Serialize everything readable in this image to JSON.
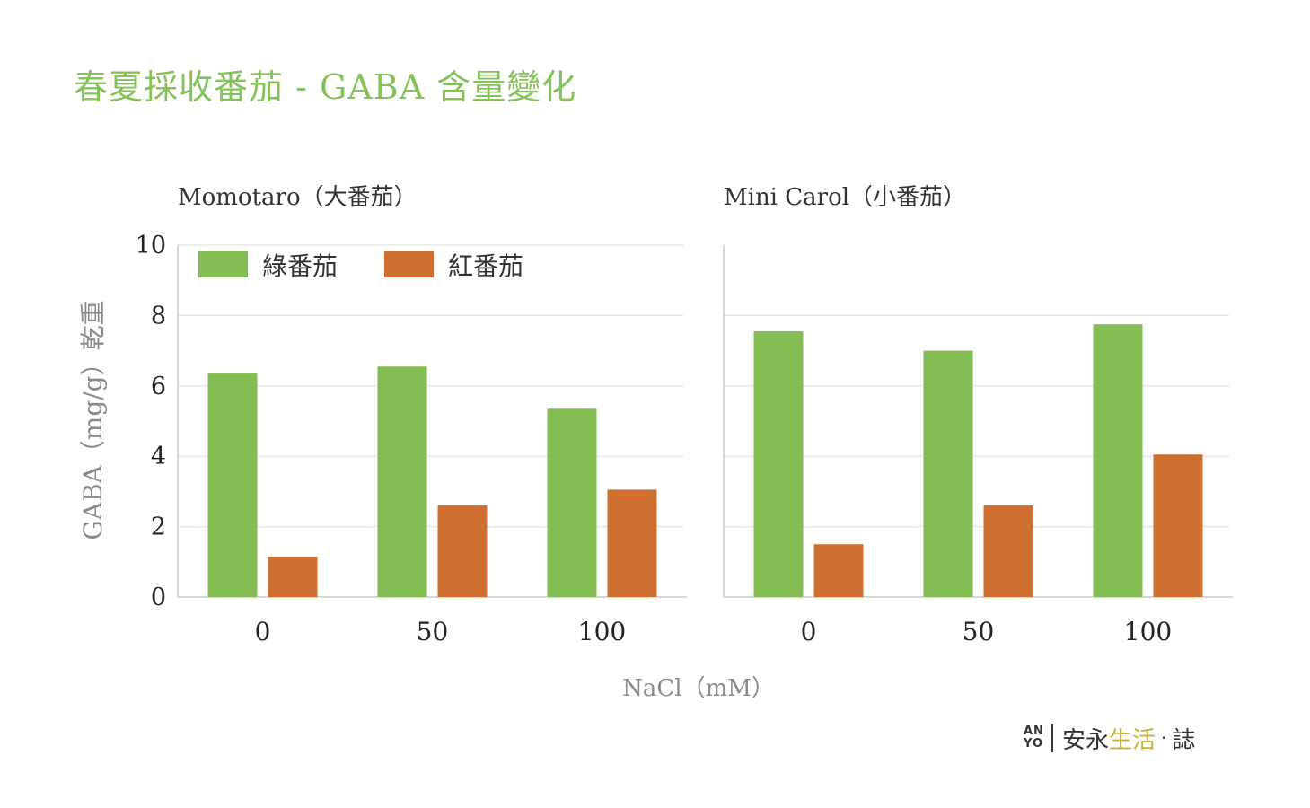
{
  "title": "春夏採收番茄 - GABA 含量變化",
  "colors": {
    "title": "#86c15a",
    "green": "#84bd54",
    "red": "#d07030",
    "grid": "#e6e6e6",
    "axis": "#cccccc",
    "text": "#222222",
    "muted": "#8a8a8a"
  },
  "logo": {
    "mark_top": "AN",
    "mark_bottom": "YO",
    "text_dark": "安永",
    "text_accent": "生活",
    "dot": "·",
    "suffix": "誌"
  },
  "chart_data": [
    {
      "type": "bar",
      "title": "Momotaro（大番茄）",
      "xlabel": "NaCl（mM）",
      "ylabel": "GABA（mg/g）乾重",
      "categories": [
        "0",
        "50",
        "100"
      ],
      "ylim": [
        0,
        10
      ],
      "yticks": [
        0,
        2,
        4,
        6,
        8,
        10
      ],
      "grid": true,
      "legend_position": "top-left",
      "series": [
        {
          "name": "綠番茄",
          "color": "#84bd54",
          "values": [
            6.35,
            6.55,
            5.35
          ]
        },
        {
          "name": "紅番茄",
          "color": "#d07030",
          "values": [
            1.15,
            2.6,
            3.05
          ]
        }
      ]
    },
    {
      "type": "bar",
      "title": "Mini Carol（小番茄）",
      "xlabel": "NaCl（mM）",
      "ylabel": "GABA（mg/g）乾重",
      "categories": [
        "0",
        "50",
        "100"
      ],
      "ylim": [
        0,
        10
      ],
      "yticks": [
        0,
        2,
        4,
        6,
        8,
        10
      ],
      "grid": true,
      "series": [
        {
          "name": "綠番茄",
          "color": "#84bd54",
          "values": [
            7.55,
            7.0,
            7.75
          ]
        },
        {
          "name": "紅番茄",
          "color": "#d07030",
          "values": [
            1.5,
            2.6,
            4.05
          ]
        }
      ]
    }
  ]
}
